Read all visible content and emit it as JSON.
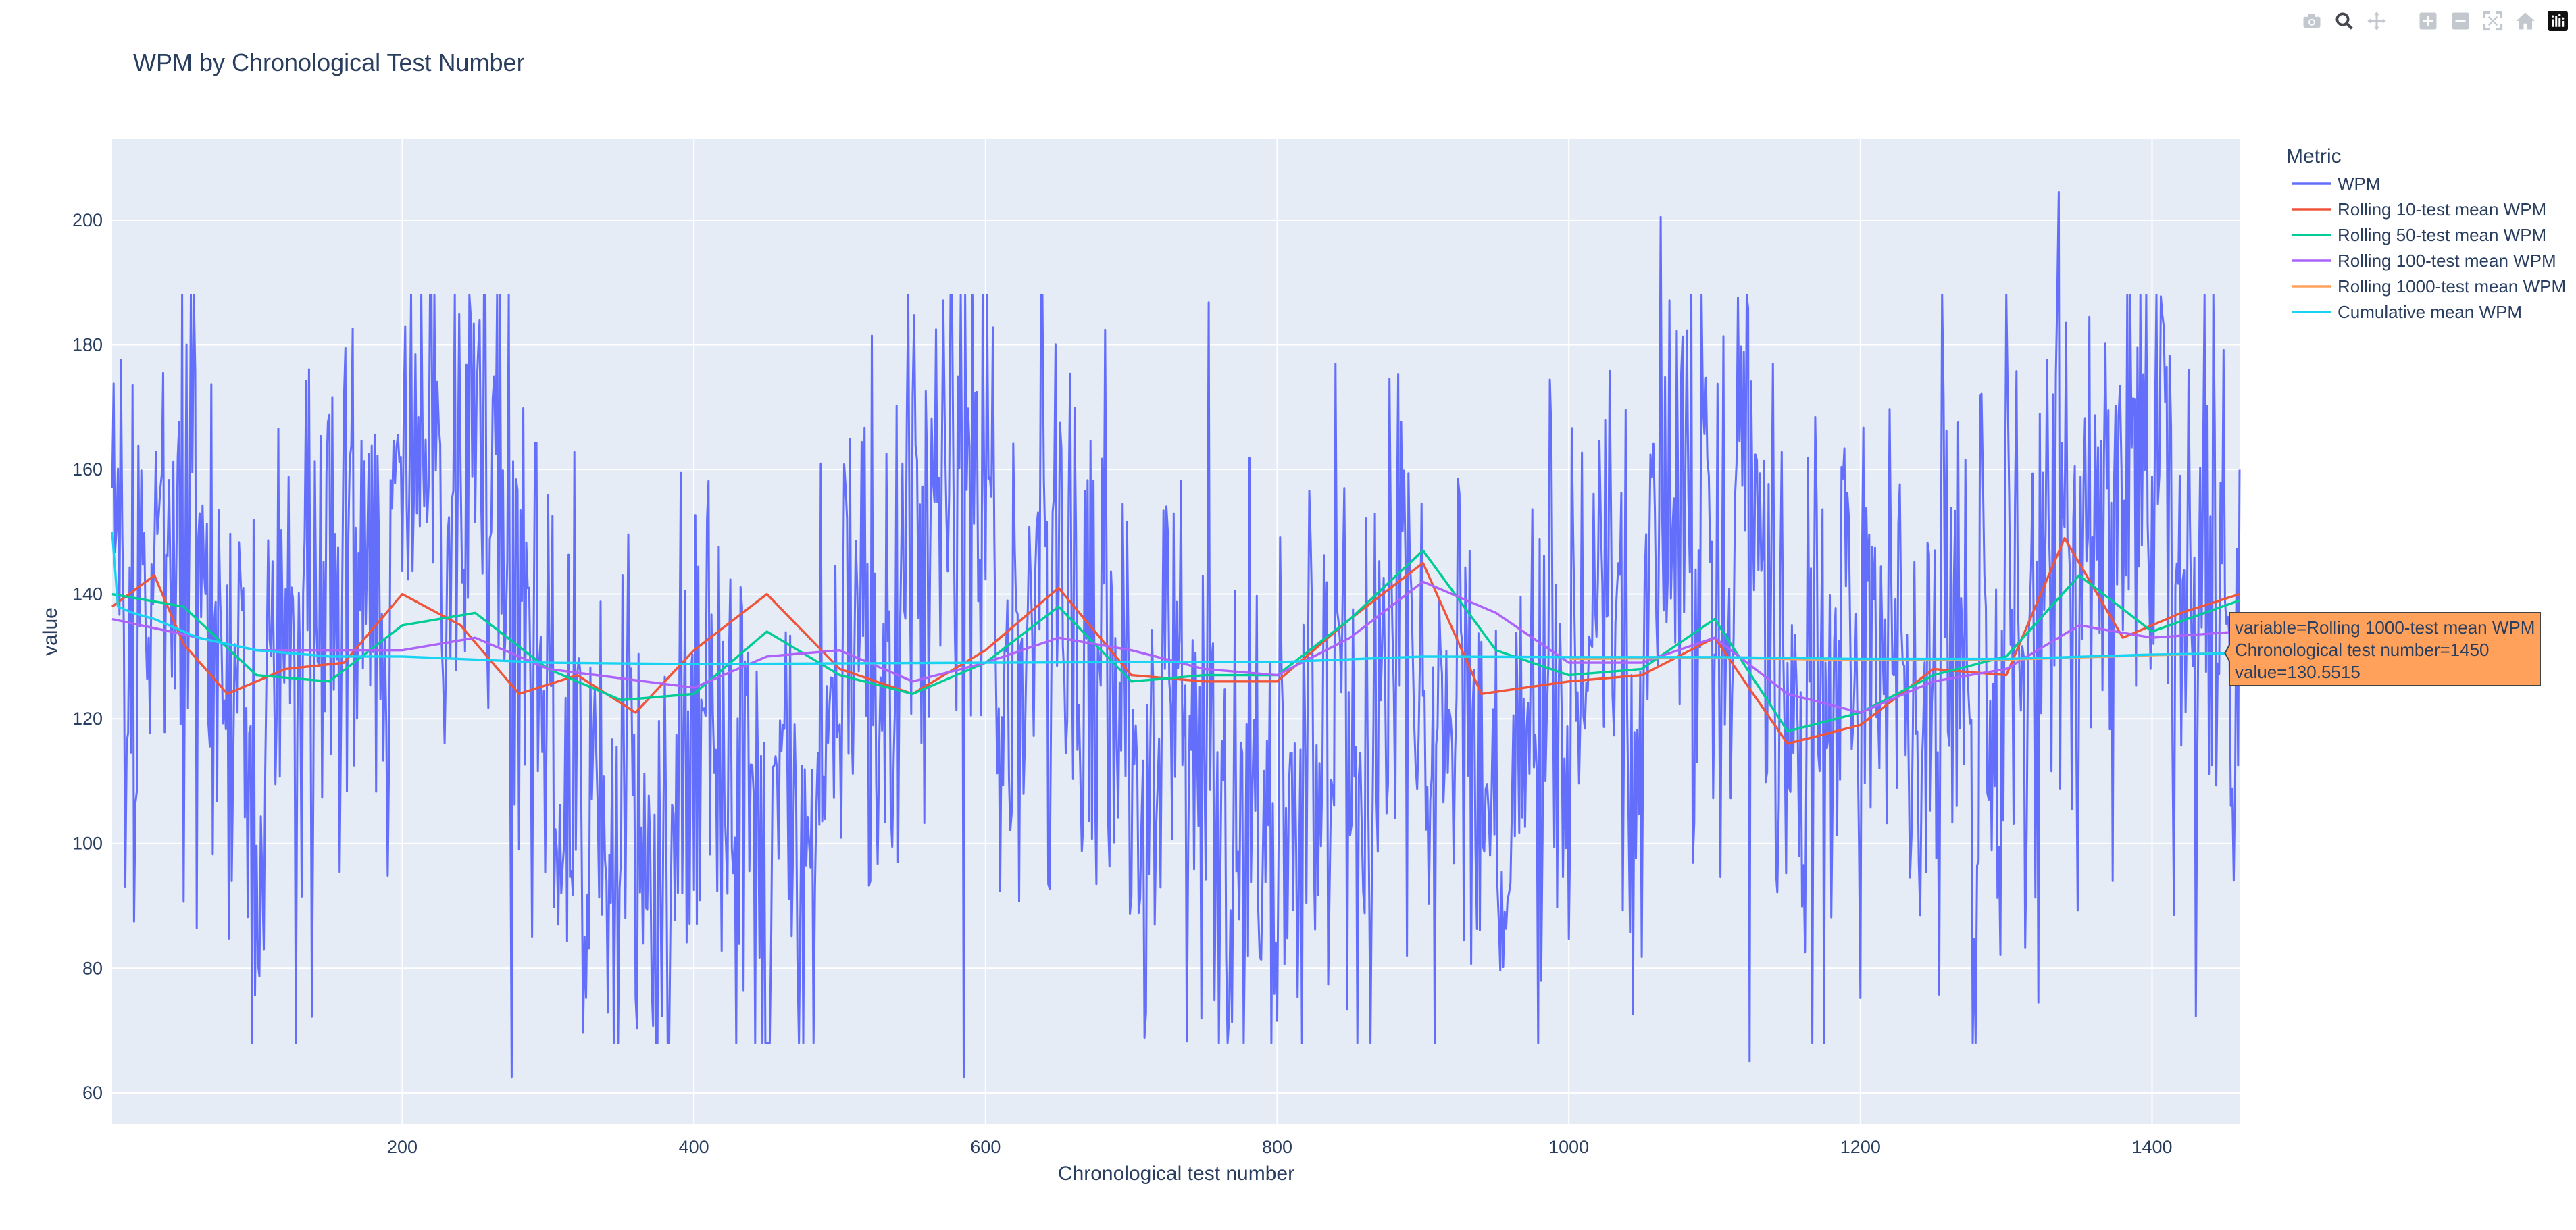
{
  "chart_data": {
    "type": "line",
    "title": "WPM by Chronological Test Number",
    "xlabel": "Chronological test number",
    "ylabel": "value",
    "xlim": [
      1,
      1460
    ],
    "ylim": [
      55,
      213
    ],
    "x_ticks": [
      200,
      400,
      600,
      800,
      1000,
      1200,
      1400
    ],
    "y_ticks": [
      60,
      80,
      100,
      120,
      140,
      160,
      180,
      200
    ],
    "grid": true,
    "legend": {
      "title": "Metric",
      "placement": "right"
    },
    "series": [
      {
        "name": "WPM",
        "color": "#636efa",
        "mean": 130.5,
        "noise": 23,
        "seed": 7,
        "extremes": [
          [
            1063,
            200.5
          ],
          [
            1336,
            204.5
          ],
          [
            275,
            62.5
          ],
          [
            585,
            62.5
          ],
          [
            1124,
            65
          ]
        ]
      },
      {
        "name": "Rolling 10-test mean WPM",
        "color": "#ef553b",
        "x": [
          1,
          30,
          50,
          80,
          120,
          160,
          200,
          240,
          280,
          320,
          360,
          400,
          450,
          500,
          550,
          600,
          650,
          700,
          750,
          800,
          850,
          900,
          940,
          1000,
          1050,
          1100,
          1150,
          1200,
          1250,
          1300,
          1340,
          1380,
          1420,
          1460
        ],
        "y": [
          138,
          143,
          132,
          124,
          128,
          129,
          140,
          135,
          124,
          127,
          121,
          131,
          140,
          128,
          124,
          131,
          141,
          127,
          126,
          126,
          136,
          145,
          124,
          126,
          127,
          133,
          116,
          119,
          128,
          127,
          149,
          133,
          137,
          140
        ]
      },
      {
        "name": "Rolling 50-test mean WPM",
        "color": "#00cc96",
        "x": [
          1,
          50,
          100,
          150,
          200,
          250,
          300,
          350,
          400,
          450,
          500,
          550,
          600,
          650,
          700,
          750,
          800,
          850,
          900,
          950,
          1000,
          1050,
          1100,
          1150,
          1200,
          1250,
          1300,
          1350,
          1400,
          1460
        ],
        "y": [
          140,
          138,
          127,
          126,
          135,
          137,
          128,
          123,
          124,
          134,
          127,
          124,
          129,
          138,
          126,
          127,
          127,
          136,
          147,
          131,
          127,
          128,
          136,
          118,
          121,
          127,
          130,
          143,
          134,
          139
        ]
      },
      {
        "name": "Rolling 100-test mean WPM",
        "color": "#ab63fa",
        "x": [
          1,
          100,
          200,
          250,
          300,
          400,
          450,
          500,
          550,
          600,
          650,
          700,
          750,
          800,
          850,
          900,
          950,
          1000,
          1050,
          1100,
          1150,
          1200,
          1250,
          1300,
          1350,
          1400,
          1460
        ],
        "y": [
          136,
          131,
          131,
          133,
          128,
          125,
          130,
          131,
          126,
          129,
          133,
          131,
          128,
          127,
          133,
          142,
          137,
          129,
          129,
          133,
          124,
          121,
          126,
          128,
          135,
          133,
          134
        ]
      },
      {
        "name": "Rolling 1000-test mean WPM",
        "color": "#ffa15a",
        "x": [
          1000,
          1100,
          1200,
          1300,
          1400,
          1460
        ],
        "y": [
          129.6,
          129.8,
          129.4,
          129.5,
          130.2,
          130.6
        ]
      },
      {
        "name": "Cumulative mean WPM",
        "color": "#19d3f3",
        "x": [
          1,
          5,
          15,
          30,
          60,
          100,
          150,
          200,
          300,
          400,
          500,
          600,
          700,
          800,
          900,
          1000,
          1100,
          1200,
          1300,
          1400,
          1460
        ],
        "y": [
          150,
          138,
          137,
          136,
          133,
          131,
          130,
          130,
          129,
          128.8,
          128.9,
          129,
          129.1,
          129.1,
          130,
          129.9,
          129.9,
          129.6,
          129.6,
          130.3,
          130.5
        ]
      }
    ],
    "hover": {
      "lines": [
        "variable=Rolling 1000-test mean WPM",
        "Chronological test number=1450",
        "value=130.5515"
      ],
      "x": 1450,
      "y": 130.5515,
      "color": "#ffa15a"
    }
  },
  "modebar": {
    "icons": [
      "camera-icon",
      "zoom-icon",
      "pan-icon",
      "zoom-in-icon",
      "zoom-out-icon",
      "autoscale-icon",
      "reset-axes-icon",
      "plotly-logo-icon"
    ]
  }
}
